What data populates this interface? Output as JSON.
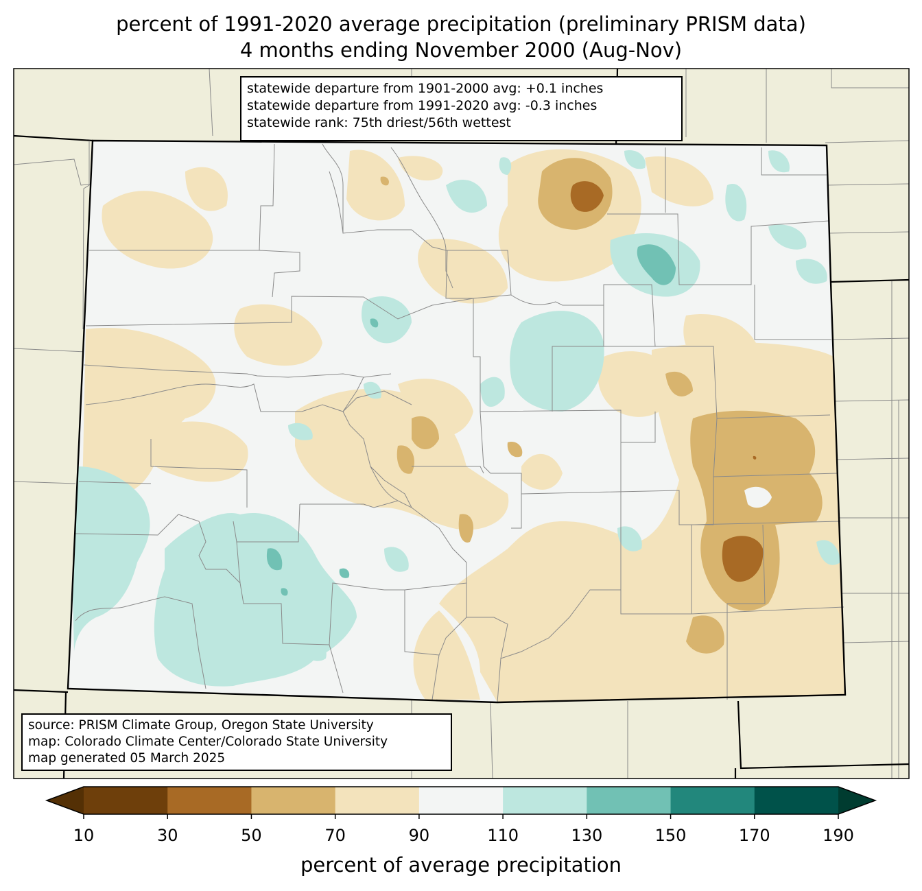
{
  "title": {
    "line1": "percent of 1991-2020 average precipitation (preliminary PRISM data)",
    "line2": "4 months ending November 2000 (Aug-Nov)"
  },
  "stats": [
    "statewide departure from 1901-2000 avg: +0.1 inches",
    "statewide departure from 1991-2020 avg: -0.3 inches",
    "statewide rank: 75th driest/56th wettest"
  ],
  "source": [
    "source: PRISM Climate Group, Oregon State University",
    "map: Colorado Climate Center/Colorado State University",
    "map generated 05 March 2025"
  ],
  "colorbar": {
    "label": "percent of average precipitation",
    "ticks": [
      "10",
      "30",
      "50",
      "70",
      "90",
      "110",
      "130",
      "150",
      "170",
      "190"
    ],
    "colors": [
      "#6e3f0b",
      "#a86a25",
      "#d8b46e",
      "#f3e3bc",
      "#f3f5f4",
      "#bde7df",
      "#71c1b4",
      "#22877c",
      "#00524a"
    ],
    "under_color": "#543005",
    "over_color": "#003c30"
  },
  "map_colors": {
    "background": "#efeedb",
    "state_fill": "#f3f5f4",
    "county_line": "#8a8a8a",
    "state_line": "#000000"
  }
}
